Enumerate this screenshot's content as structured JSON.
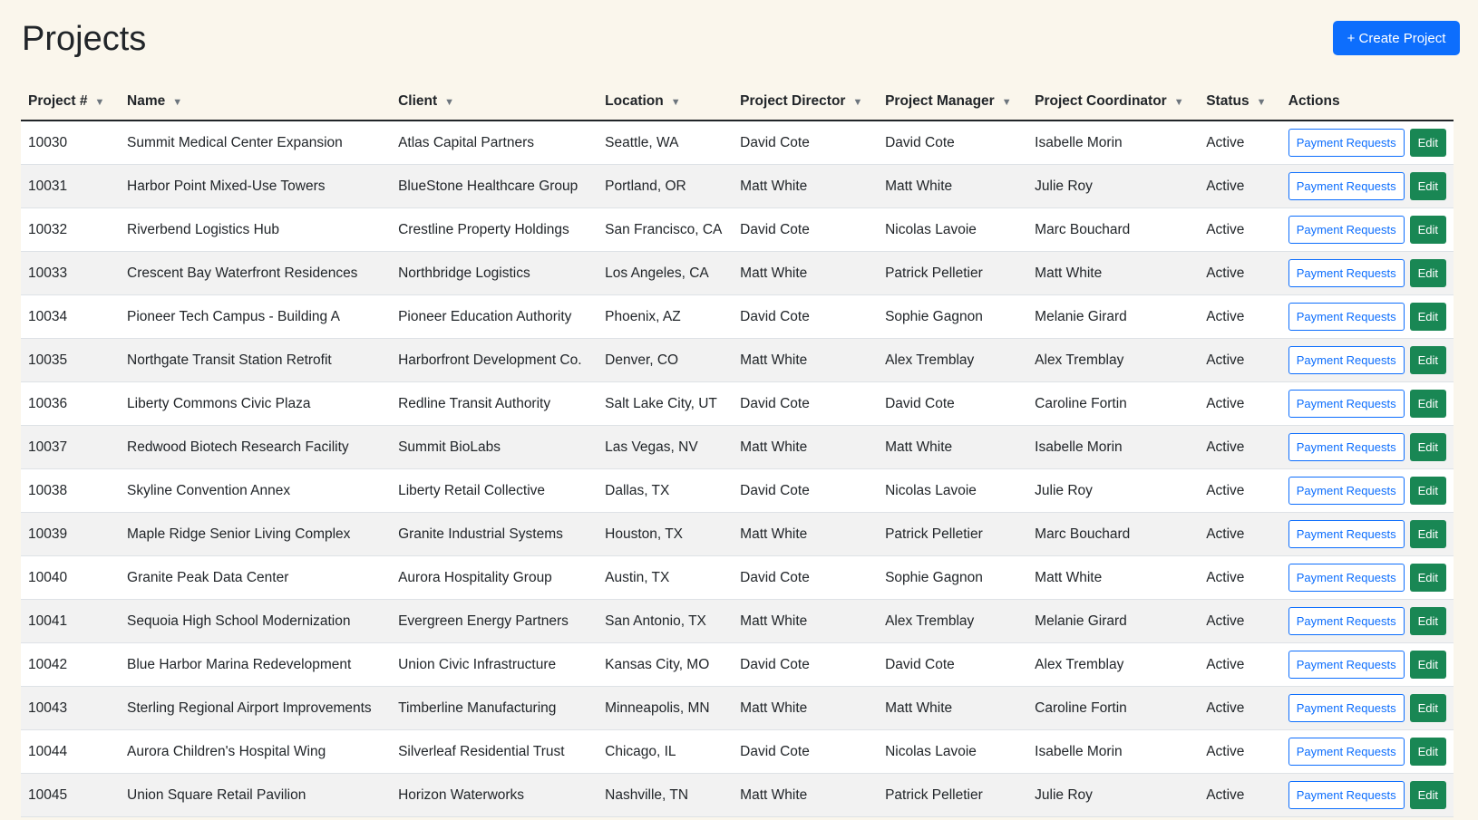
{
  "header": {
    "title": "Projects",
    "create_label": "+ Create Project"
  },
  "table": {
    "columns": [
      {
        "label": "Project #",
        "filter": true
      },
      {
        "label": "Name",
        "filter": true
      },
      {
        "label": "Client",
        "filter": true
      },
      {
        "label": "Location",
        "filter": true
      },
      {
        "label": "Project Director",
        "filter": true
      },
      {
        "label": "Project Manager",
        "filter": true
      },
      {
        "label": "Project Coordinator",
        "filter": true
      },
      {
        "label": "Status",
        "filter": true
      },
      {
        "label": "Actions",
        "filter": false
      }
    ],
    "filter_icon": "funnel-icon",
    "payment_label": "Payment Requests",
    "edit_label": "Edit",
    "rows": [
      [
        "10030",
        "Summit Medical Center Expansion",
        "Atlas Capital Partners",
        "Seattle, WA",
        "David Cote",
        "David Cote",
        "Isabelle Morin",
        "Active"
      ],
      [
        "10031",
        "Harbor Point Mixed-Use Towers",
        "BlueStone Healthcare Group",
        "Portland, OR",
        "Matt White",
        "Matt White",
        "Julie Roy",
        "Active"
      ],
      [
        "10032",
        "Riverbend Logistics Hub",
        "Crestline Property Holdings",
        "San Francisco, CA",
        "David Cote",
        "Nicolas Lavoie",
        "Marc Bouchard",
        "Active"
      ],
      [
        "10033",
        "Crescent Bay Waterfront Residences",
        "Northbridge Logistics",
        "Los Angeles, CA",
        "Matt White",
        "Patrick Pelletier",
        "Matt White",
        "Active"
      ],
      [
        "10034",
        "Pioneer Tech Campus - Building A",
        "Pioneer Education Authority",
        "Phoenix, AZ",
        "David Cote",
        "Sophie Gagnon",
        "Melanie Girard",
        "Active"
      ],
      [
        "10035",
        "Northgate Transit Station Retrofit",
        "Harborfront Development Co.",
        "Denver, CO",
        "Matt White",
        "Alex Tremblay",
        "Alex Tremblay",
        "Active"
      ],
      [
        "10036",
        "Liberty Commons Civic Plaza",
        "Redline Transit Authority",
        "Salt Lake City, UT",
        "David Cote",
        "David Cote",
        "Caroline Fortin",
        "Active"
      ],
      [
        "10037",
        "Redwood Biotech Research Facility",
        "Summit BioLabs",
        "Las Vegas, NV",
        "Matt White",
        "Matt White",
        "Isabelle Morin",
        "Active"
      ],
      [
        "10038",
        "Skyline Convention Annex",
        "Liberty Retail Collective",
        "Dallas, TX",
        "David Cote",
        "Nicolas Lavoie",
        "Julie Roy",
        "Active"
      ],
      [
        "10039",
        "Maple Ridge Senior Living Complex",
        "Granite Industrial Systems",
        "Houston, TX",
        "Matt White",
        "Patrick Pelletier",
        "Marc Bouchard",
        "Active"
      ],
      [
        "10040",
        "Granite Peak Data Center",
        "Aurora Hospitality Group",
        "Austin, TX",
        "David Cote",
        "Sophie Gagnon",
        "Matt White",
        "Active"
      ],
      [
        "10041",
        "Sequoia High School Modernization",
        "Evergreen Energy Partners",
        "San Antonio, TX",
        "Matt White",
        "Alex Tremblay",
        "Melanie Girard",
        "Active"
      ],
      [
        "10042",
        "Blue Harbor Marina Redevelopment",
        "Union Civic Infrastructure",
        "Kansas City, MO",
        "David Cote",
        "David Cote",
        "Alex Tremblay",
        "Active"
      ],
      [
        "10043",
        "Sterling Regional Airport Improvements",
        "Timberline Manufacturing",
        "Minneapolis, MN",
        "Matt White",
        "Matt White",
        "Caroline Fortin",
        "Active"
      ],
      [
        "10044",
        "Aurora Children's Hospital Wing",
        "Silverleaf Residential Trust",
        "Chicago, IL",
        "David Cote",
        "Nicolas Lavoie",
        "Isabelle Morin",
        "Active"
      ],
      [
        "10045",
        "Union Square Retail Pavilion",
        "Horizon Waterworks",
        "Nashville, TN",
        "Matt White",
        "Patrick Pelletier",
        "Julie Roy",
        "Active"
      ]
    ]
  },
  "colors": {
    "primary": "#0d6efd",
    "success": "#198754",
    "background": "#faf6ec"
  }
}
